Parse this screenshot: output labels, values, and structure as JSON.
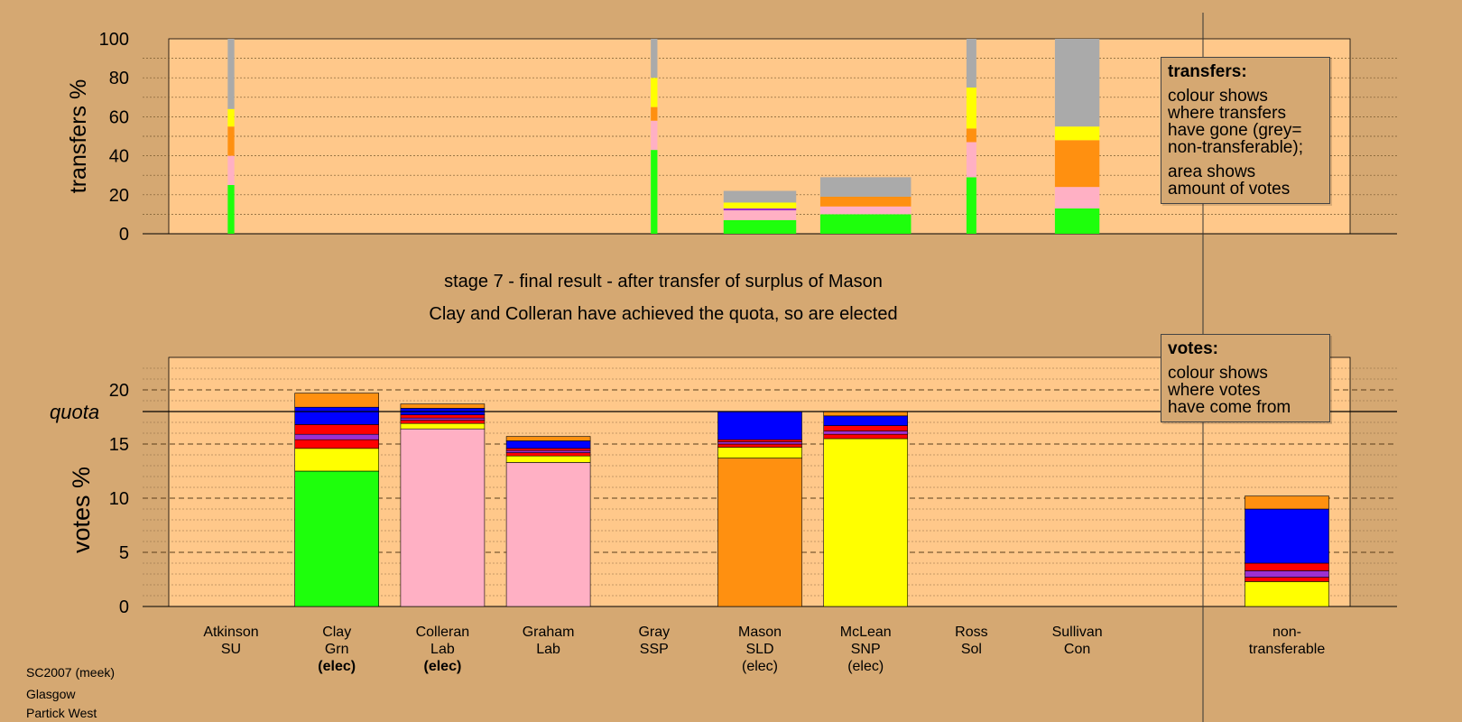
{
  "chart_data": [
    {
      "type": "bar",
      "name": "transfers",
      "ylabel": "transfers %",
      "ylim": [
        0,
        100
      ],
      "yticks": [
        0,
        20,
        40,
        60,
        80,
        100
      ],
      "grid": true,
      "legend": {
        "title": "transfers:",
        "lines": [
          "colour shows\nwhere transfers\nhave gone (grey=\nnon-transferable);",
          "area shows\namount of votes"
        ],
        "placement": "top-right"
      },
      "bars": [
        {
          "candidate": "Atkinson",
          "width": 0.08,
          "segments": [
            {
              "color": "green",
              "value": 25
            },
            {
              "color": "pink",
              "value": 15
            },
            {
              "color": "orange",
              "value": 15
            },
            {
              "color": "yellow",
              "value": 9
            },
            {
              "color": "grey",
              "value": 36
            }
          ]
        },
        {
          "candidate": "Gray",
          "width": 0.08,
          "segments": [
            {
              "color": "green",
              "value": 43
            },
            {
              "color": "pink",
              "value": 15
            },
            {
              "color": "orange",
              "value": 7
            },
            {
              "color": "yellow",
              "value": 15
            },
            {
              "color": "grey",
              "value": 20
            }
          ]
        },
        {
          "candidate": "Mason",
          "width": 0.88,
          "segments": [
            {
              "color": "green",
              "value": 7
            },
            {
              "color": "pink",
              "value": 5
            },
            {
              "color": "purple",
              "value": 1
            },
            {
              "color": "yellow",
              "value": 3
            },
            {
              "color": "grey",
              "value": 6
            }
          ]
        },
        {
          "candidate": "McLean",
          "width": 1.1,
          "segments": [
            {
              "color": "green",
              "value": 10
            },
            {
              "color": "pink",
              "value": 4
            },
            {
              "color": "orange",
              "value": 5
            },
            {
              "color": "grey",
              "value": 10
            }
          ]
        },
        {
          "candidate": "Ross",
          "width": 0.12,
          "segments": [
            {
              "color": "green",
              "value": 29
            },
            {
              "color": "pink",
              "value": 18
            },
            {
              "color": "orange",
              "value": 7
            },
            {
              "color": "yellow",
              "value": 21
            },
            {
              "color": "grey",
              "value": 25
            }
          ]
        },
        {
          "candidate": "Sullivan",
          "width": 0.54,
          "segments": [
            {
              "color": "green",
              "value": 13
            },
            {
              "color": "pink",
              "value": 11
            },
            {
              "color": "orange",
              "value": 24
            },
            {
              "color": "yellow",
              "value": 7
            },
            {
              "color": "grey",
              "value": 45
            }
          ]
        }
      ]
    },
    {
      "type": "bar",
      "name": "votes",
      "ylabel": "votes %",
      "ylim": [
        0,
        23
      ],
      "yticks": [
        0,
        5,
        10,
        15,
        20
      ],
      "quota": 18,
      "quota_label": "quota",
      "grid": true,
      "legend": {
        "title": "votes:",
        "lines": [
          "colour shows\nwhere votes\nhave come from"
        ],
        "placement": "top-right"
      },
      "categories": [
        {
          "line1": "Atkinson",
          "line2": "SU",
          "line3": "",
          "bold3": false
        },
        {
          "line1": "Clay",
          "line2": "Grn",
          "line3": "(elec)",
          "bold3": true
        },
        {
          "line1": "Colleran",
          "line2": "Lab",
          "line3": "(elec)",
          "bold3": true
        },
        {
          "line1": "Graham",
          "line2": "Lab",
          "line3": "",
          "bold3": false
        },
        {
          "line1": "Gray",
          "line2": "SSP",
          "line3": "",
          "bold3": false
        },
        {
          "line1": "Mason",
          "line2": "SLD",
          "line3": "(elec)",
          "bold3": false
        },
        {
          "line1": "McLean",
          "line2": "SNP",
          "line3": "(elec)",
          "bold3": false
        },
        {
          "line1": "Ross",
          "line2": "Sol",
          "line3": "",
          "bold3": false
        },
        {
          "line1": "Sullivan",
          "line2": "Con",
          "line3": "",
          "bold3": false
        },
        {
          "line1": "non-",
          "line2": "transferable",
          "line3": "",
          "bold3": false
        }
      ],
      "bars": [
        {
          "segments": []
        },
        {
          "segments": [
            {
              "color": "green",
              "value": 12.5
            },
            {
              "color": "yellow",
              "value": 2.1
            },
            {
              "color": "red",
              "value": 0.8
            },
            {
              "color": "purple",
              "value": 0.5
            },
            {
              "color": "red",
              "value": 0.9
            },
            {
              "color": "blue",
              "value": 1.6
            },
            {
              "color": "orange",
              "value": 1.3
            }
          ]
        },
        {
          "segments": [
            {
              "color": "pink",
              "value": 16.4
            },
            {
              "color": "yellow",
              "value": 0.5
            },
            {
              "color": "red",
              "value": 0.3
            },
            {
              "color": "purple",
              "value": 0.2
            },
            {
              "color": "red",
              "value": 0.3
            },
            {
              "color": "blue",
              "value": 0.6
            },
            {
              "color": "orange",
              "value": 0.4
            }
          ]
        },
        {
          "segments": [
            {
              "color": "pink",
              "value": 13.3
            },
            {
              "color": "yellow",
              "value": 0.6
            },
            {
              "color": "red",
              "value": 0.3
            },
            {
              "color": "purple",
              "value": 0.2
            },
            {
              "color": "red",
              "value": 0.2
            },
            {
              "color": "blue",
              "value": 0.7
            },
            {
              "color": "orange",
              "value": 0.4
            }
          ]
        },
        {
          "segments": []
        },
        {
          "segments": [
            {
              "color": "orange",
              "value": 13.7
            },
            {
              "color": "yellow",
              "value": 1.0
            },
            {
              "color": "red",
              "value": 0.3
            },
            {
              "color": "purple",
              "value": 0.2
            },
            {
              "color": "red",
              "value": 0.2
            },
            {
              "color": "blue",
              "value": 2.6
            }
          ]
        },
        {
          "segments": [
            {
              "color": "yellow",
              "value": 15.5
            },
            {
              "color": "red",
              "value": 0.4
            },
            {
              "color": "purple",
              "value": 0.3
            },
            {
              "color": "red",
              "value": 0.5
            },
            {
              "color": "blue",
              "value": 0.9
            },
            {
              "color": "orange",
              "value": 0.4
            }
          ]
        },
        {
          "segments": []
        },
        {
          "segments": []
        },
        {
          "segments": [
            {
              "color": "yellow",
              "value": 2.3
            },
            {
              "color": "red",
              "value": 0.4
            },
            {
              "color": "purple",
              "value": 0.6
            },
            {
              "color": "red",
              "value": 0.7
            },
            {
              "color": "blue",
              "value": 5.0
            },
            {
              "color": "orange",
              "value": 1.2
            }
          ]
        }
      ]
    }
  ],
  "colors": {
    "background": "#d5a872",
    "plot_bg": "#ffc88a",
    "green": "#1eff0c",
    "pink": "#ffb0c4",
    "orange": "#ff9010",
    "yellow": "#ffff00",
    "grey": "#aaaaaa",
    "red": "#ff0000",
    "purple": "#9c30d0",
    "blue": "#0000ff"
  },
  "title_lines": [
    "stage 7 - final result - after transfer of surplus of Mason",
    "Clay and Colleran have achieved the quota, so are elected"
  ],
  "footer": [
    "SC2007 (meek)",
    "Glasgow",
    "Partick West"
  ]
}
